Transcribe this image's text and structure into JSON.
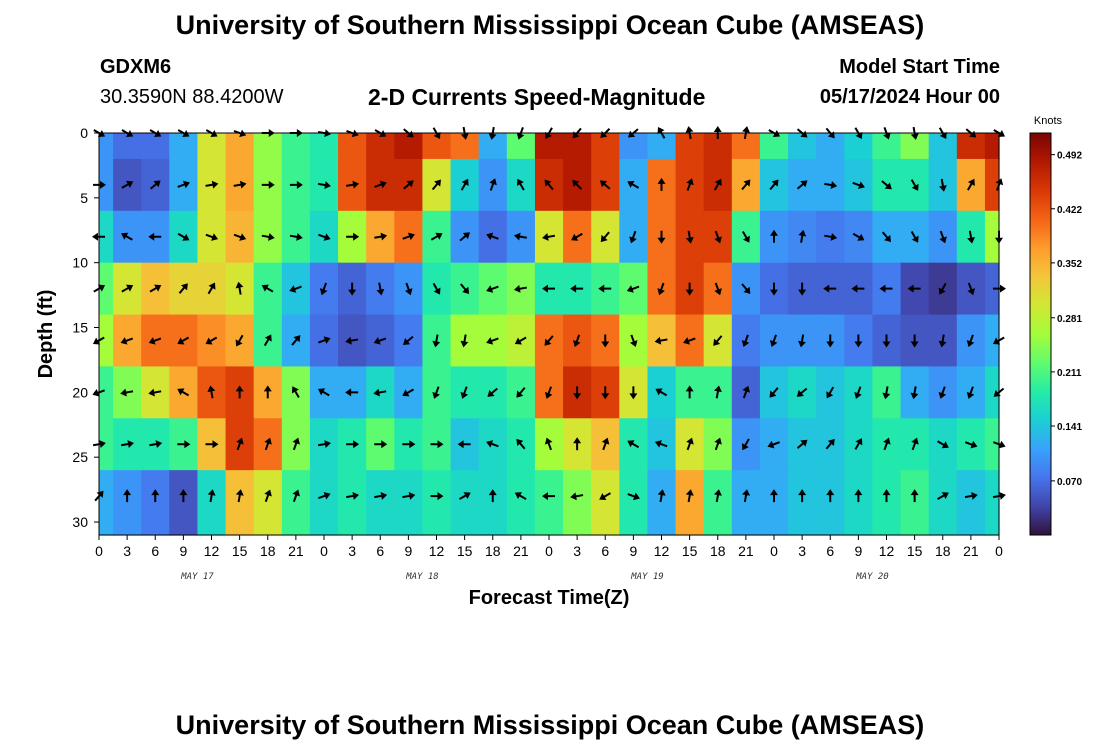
{
  "header": {
    "title": "University of Southern Mississippi Ocean Cube (AMSEAS)",
    "station": "GDXM6",
    "coords": "30.3590N  88.4200W",
    "subtitle": "2-D Currents Speed-Magnitude",
    "start_label": "Model Start Time",
    "start_value": "05/17/2024 Hour 00"
  },
  "footer": {
    "title": "University of Southern Mississippi Ocean Cube (AMSEAS)"
  },
  "chart_data": {
    "type": "heatmap",
    "title": "2-D Currents Speed-Magnitude",
    "xlabel": "Forecast Time(Z)",
    "ylabel": "Depth (ft)",
    "xlim": [
      0,
      96
    ],
    "ylim": [
      0,
      31
    ],
    "x_tick_values": [
      0,
      3,
      6,
      9,
      12,
      15,
      18,
      21,
      24,
      27,
      30,
      33,
      36,
      39,
      42,
      45,
      48,
      51,
      54,
      57,
      60,
      63,
      66,
      69,
      72,
      75,
      78,
      81,
      84,
      87,
      90,
      93,
      96
    ],
    "x_tick_labels": [
      "0",
      "3",
      "6",
      "9",
      "12",
      "15",
      "18",
      "21",
      "0",
      "3",
      "6",
      "9",
      "12",
      "15",
      "18",
      "21",
      "0",
      "3",
      "6",
      "9",
      "12",
      "15",
      "18",
      "21",
      "0",
      "3",
      "6",
      "9",
      "12",
      "15",
      "18",
      "21",
      "0"
    ],
    "day_labels": [
      {
        "label": "MAY 17",
        "at": 10.5
      },
      {
        "label": "MAY 18",
        "at": 34.5
      },
      {
        "label": "MAY 19",
        "at": 58.5
      },
      {
        "label": "MAY 20",
        "at": 82.5
      }
    ],
    "y_ticks": [
      0,
      5,
      10,
      15,
      20,
      25,
      30
    ],
    "depths_ft": [
      0,
      4,
      8,
      12,
      16,
      20,
      24,
      28
    ],
    "hours": [
      0,
      3,
      6,
      9,
      12,
      15,
      18,
      21,
      24,
      27,
      30,
      33,
      36,
      39,
      42,
      45,
      48,
      51,
      54,
      57,
      60,
      63,
      66,
      69,
      72,
      75,
      78,
      81,
      84,
      87,
      90,
      93,
      96
    ],
    "speed_knots": [
      [
        0.1,
        0.07,
        0.07,
        0.12,
        0.3,
        0.36,
        0.25,
        0.2,
        0.18,
        0.42,
        0.46,
        0.48,
        0.42,
        0.4,
        0.12,
        0.22,
        0.48,
        0.48,
        0.44,
        0.1,
        0.12,
        0.44,
        0.46,
        0.4,
        0.2,
        0.14,
        0.12,
        0.15,
        0.2,
        0.24,
        0.14,
        0.46,
        0.48
      ],
      [
        0.1,
        0.05,
        0.06,
        0.12,
        0.3,
        0.36,
        0.25,
        0.2,
        0.18,
        0.42,
        0.46,
        0.46,
        0.3,
        0.15,
        0.1,
        0.16,
        0.46,
        0.48,
        0.44,
        0.12,
        0.4,
        0.44,
        0.46,
        0.36,
        0.14,
        0.12,
        0.12,
        0.14,
        0.18,
        0.18,
        0.14,
        0.36,
        0.44
      ],
      [
        0.16,
        0.1,
        0.1,
        0.16,
        0.3,
        0.35,
        0.25,
        0.2,
        0.16,
        0.26,
        0.36,
        0.4,
        0.2,
        0.1,
        0.07,
        0.1,
        0.3,
        0.4,
        0.3,
        0.12,
        0.4,
        0.44,
        0.44,
        0.2,
        0.1,
        0.09,
        0.08,
        0.09,
        0.12,
        0.12,
        0.1,
        0.18,
        0.26
      ],
      [
        0.22,
        0.3,
        0.34,
        0.32,
        0.32,
        0.3,
        0.2,
        0.14,
        0.08,
        0.06,
        0.08,
        0.1,
        0.18,
        0.2,
        0.22,
        0.24,
        0.18,
        0.18,
        0.2,
        0.22,
        0.4,
        0.44,
        0.4,
        0.1,
        0.07,
        0.06,
        0.06,
        0.06,
        0.08,
        0.04,
        0.03,
        0.05,
        0.06
      ],
      [
        0.26,
        0.36,
        0.4,
        0.4,
        0.38,
        0.36,
        0.2,
        0.12,
        0.07,
        0.05,
        0.06,
        0.08,
        0.2,
        0.26,
        0.26,
        0.28,
        0.4,
        0.42,
        0.4,
        0.26,
        0.34,
        0.4,
        0.3,
        0.08,
        0.1,
        0.1,
        0.1,
        0.08,
        0.06,
        0.05,
        0.05,
        0.1,
        0.12
      ],
      [
        0.2,
        0.24,
        0.3,
        0.36,
        0.42,
        0.44,
        0.36,
        0.24,
        0.12,
        0.12,
        0.16,
        0.12,
        0.2,
        0.18,
        0.18,
        0.2,
        0.4,
        0.46,
        0.44,
        0.3,
        0.15,
        0.2,
        0.2,
        0.06,
        0.14,
        0.16,
        0.14,
        0.16,
        0.2,
        0.12,
        0.1,
        0.12,
        0.16
      ],
      [
        0.2,
        0.18,
        0.18,
        0.2,
        0.34,
        0.44,
        0.4,
        0.24,
        0.16,
        0.18,
        0.22,
        0.18,
        0.2,
        0.14,
        0.16,
        0.18,
        0.26,
        0.3,
        0.34,
        0.18,
        0.14,
        0.3,
        0.24,
        0.1,
        0.12,
        0.14,
        0.14,
        0.16,
        0.18,
        0.18,
        0.16,
        0.18,
        0.2
      ],
      [
        0.12,
        0.1,
        0.08,
        0.05,
        0.16,
        0.34,
        0.3,
        0.2,
        0.16,
        0.18,
        0.16,
        0.16,
        0.18,
        0.16,
        0.16,
        0.18,
        0.2,
        0.24,
        0.3,
        0.18,
        0.12,
        0.36,
        0.2,
        0.12,
        0.12,
        0.14,
        0.14,
        0.16,
        0.18,
        0.2,
        0.16,
        0.14,
        0.16
      ]
    ],
    "direction_deg": [
      [
        120,
        120,
        120,
        120,
        120,
        110,
        90,
        90,
        100,
        110,
        120,
        130,
        150,
        170,
        190,
        200,
        210,
        220,
        225,
        230,
        330,
        350,
        0,
        10,
        120,
        130,
        140,
        150,
        160,
        170,
        150,
        130,
        120
      ],
      [
        90,
        60,
        50,
        70,
        80,
        80,
        90,
        90,
        100,
        80,
        70,
        50,
        40,
        30,
        20,
        330,
        320,
        315,
        310,
        300,
        0,
        20,
        30,
        40,
        40,
        50,
        100,
        110,
        130,
        150,
        170,
        30,
        20
      ],
      [
        270,
        300,
        270,
        120,
        110,
        110,
        100,
        100,
        110,
        90,
        80,
        70,
        60,
        50,
        290,
        280,
        260,
        240,
        220,
        200,
        180,
        170,
        160,
        150,
        0,
        10,
        100,
        120,
        140,
        150,
        160,
        170,
        180
      ],
      [
        60,
        60,
        60,
        40,
        30,
        350,
        300,
        250,
        200,
        180,
        170,
        160,
        150,
        140,
        250,
        260,
        270,
        270,
        270,
        250,
        200,
        180,
        160,
        140,
        180,
        180,
        270,
        270,
        270,
        270,
        210,
        160,
        90
      ],
      [
        240,
        250,
        250,
        240,
        240,
        210,
        30,
        40,
        70,
        260,
        250,
        230,
        190,
        190,
        250,
        240,
        220,
        200,
        180,
        160,
        260,
        250,
        220,
        200,
        200,
        190,
        180,
        180,
        180,
        180,
        190,
        200,
        240
      ],
      [
        250,
        260,
        260,
        300,
        350,
        0,
        0,
        330,
        300,
        270,
        260,
        240,
        200,
        200,
        230,
        220,
        200,
        180,
        180,
        180,
        300,
        0,
        10,
        20,
        220,
        230,
        210,
        200,
        190,
        190,
        200,
        200,
        230
      ],
      [
        80,
        80,
        80,
        90,
        90,
        20,
        20,
        20,
        80,
        90,
        90,
        90,
        90,
        270,
        290,
        320,
        340,
        0,
        20,
        300,
        290,
        20,
        20,
        210,
        250,
        50,
        40,
        30,
        20,
        20,
        120,
        110,
        110
      ],
      [
        40,
        0,
        0,
        0,
        10,
        10,
        20,
        20,
        70,
        80,
        80,
        80,
        90,
        60,
        0,
        300,
        270,
        260,
        240,
        110,
        10,
        10,
        10,
        10,
        0,
        0,
        0,
        0,
        0,
        0,
        60,
        80,
        80
      ]
    ],
    "colorbar": {
      "title": "Knots",
      "range": [
        0.0,
        0.52
      ],
      "ticks": [
        0.492,
        0.422,
        0.352,
        0.281,
        0.211,
        0.141,
        0.07
      ],
      "tick_labels": [
        "0.492",
        "0.422",
        "0.352",
        "0.281",
        "0.211",
        "0.141",
        "0.070"
      ]
    },
    "colormap": [
      "#30123b",
      "#4145ab",
      "#4675ed",
      "#39a2fc",
      "#1bcfd4",
      "#24eca6",
      "#61fc6c",
      "#a4fc3b",
      "#d1e834",
      "#f3c63a",
      "#fe9b2d",
      "#f36315",
      "#d93806",
      "#b11901",
      "#7a0402"
    ]
  }
}
